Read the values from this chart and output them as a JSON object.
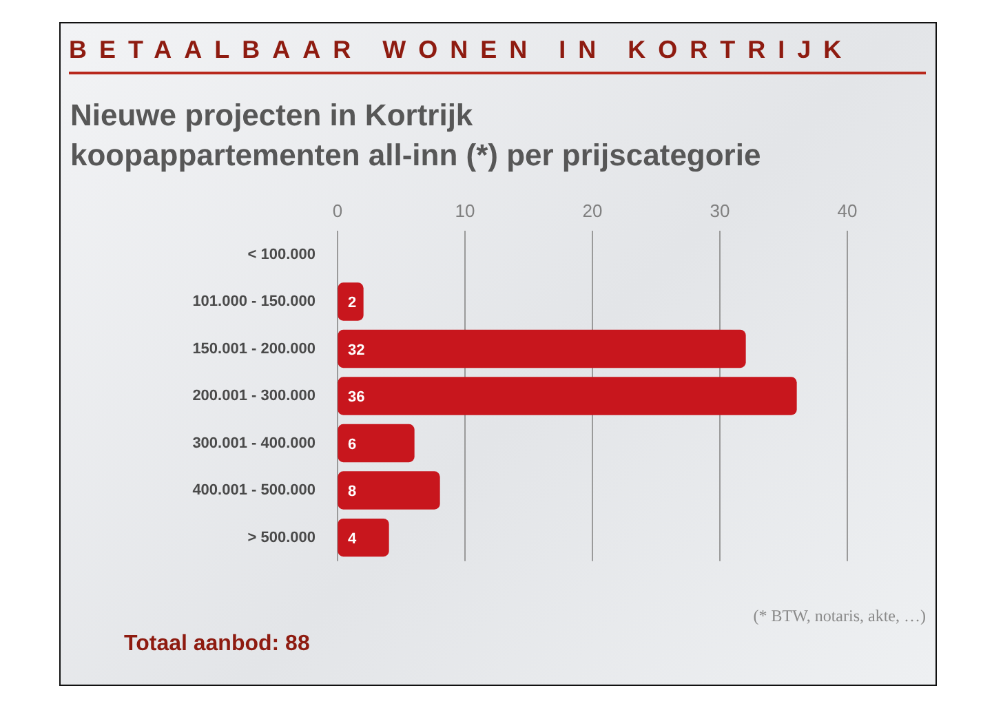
{
  "chart_data": {
    "type": "bar",
    "orientation": "horizontal",
    "title": "BETAALBAAR WONEN IN KORTRIJK",
    "subtitle": "Nieuwe projecten in Kortrijk\nkoopappartementen all-inn (*) per prijscategorie",
    "categories": [
      "< 100.000",
      "101.000 - 150.000",
      "150.001 - 200.000",
      "200.001 - 300.000",
      "300.001 - 400.000",
      "400.001 - 500.000",
      "> 500.000"
    ],
    "values": [
      null,
      2,
      32,
      36,
      6,
      8,
      4
    ],
    "color": "#c8161d",
    "xlim": [
      0,
      40
    ],
    "xticks": [
      0,
      10,
      20,
      30,
      40
    ],
    "grid": "x",
    "legend": false,
    "data_labels": true,
    "annotations": [
      "(* BTW, notaris, akte, …)",
      "Totaal aanbod: 88"
    ]
  }
}
